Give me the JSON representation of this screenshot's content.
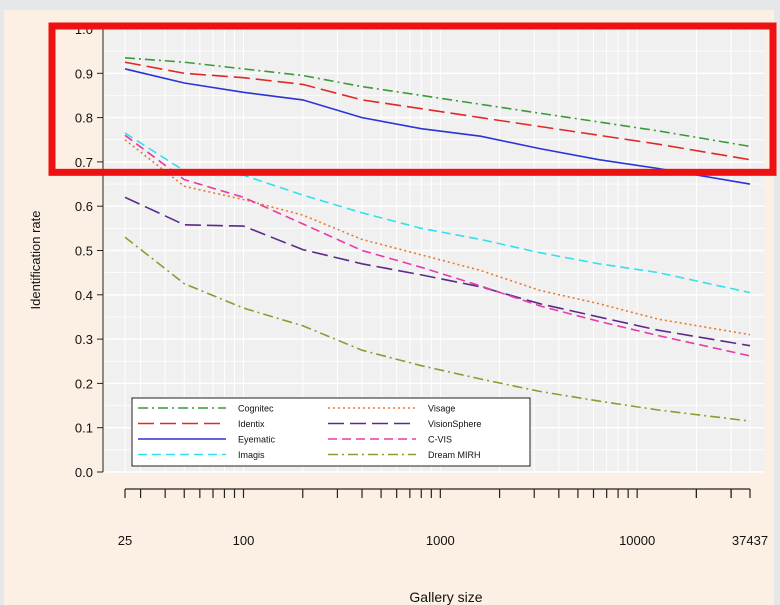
{
  "chart_data": {
    "type": "line",
    "xlabel": "Gallery size",
    "ylabel": "Identification rate",
    "xscale": "log",
    "xlim": [
      25,
      37437
    ],
    "ylim": [
      0,
      1
    ],
    "grid": true,
    "legend_position": "bottom-left",
    "x_tick_labels": [
      "25",
      "100",
      "1000",
      "10000",
      "37437"
    ],
    "y_tick_labels": [
      "0.0",
      "0.1",
      "0.2",
      "0.3",
      "0.4",
      "0.5",
      "0.6",
      "0.7",
      "0.8",
      "0.9",
      "1.0"
    ],
    "series": [
      {
        "name": "Cognitec",
        "color": "#3a9a3a",
        "dash": "dashdot",
        "x": [
          25,
          50,
          100,
          200,
          400,
          800,
          1600,
          3200,
          6400,
          12800,
          37437
        ],
        "y": [
          0.935,
          0.925,
          0.91,
          0.895,
          0.87,
          0.85,
          0.83,
          0.81,
          0.79,
          0.77,
          0.735
        ]
      },
      {
        "name": "Identix",
        "color": "#e02828",
        "dash": "longdash",
        "x": [
          25,
          50,
          100,
          200,
          400,
          800,
          1600,
          3200,
          6400,
          12800,
          37437
        ],
        "y": [
          0.925,
          0.9,
          0.89,
          0.875,
          0.84,
          0.82,
          0.8,
          0.78,
          0.76,
          0.74,
          0.705
        ]
      },
      {
        "name": "Eyematic",
        "color": "#2a34d8",
        "dash": "solid",
        "x": [
          25,
          50,
          100,
          200,
          400,
          800,
          1600,
          3200,
          6400,
          12800,
          37437
        ],
        "y": [
          0.91,
          0.878,
          0.857,
          0.84,
          0.8,
          0.775,
          0.758,
          0.73,
          0.705,
          0.685,
          0.65
        ]
      },
      {
        "name": "Imagis",
        "color": "#33e0ec",
        "dash": "dashed",
        "x": [
          25,
          50,
          100,
          200,
          400,
          800,
          1600,
          3200,
          6400,
          12800,
          37437
        ],
        "y": [
          0.765,
          0.68,
          0.67,
          0.625,
          0.585,
          0.55,
          0.525,
          0.495,
          0.47,
          0.45,
          0.405
        ]
      },
      {
        "name": "Visage",
        "color": "#e8782a",
        "dash": "dotted",
        "x": [
          25,
          50,
          100,
          200,
          400,
          800,
          1600,
          3200,
          6400,
          12800,
          37437
        ],
        "y": [
          0.75,
          0.645,
          0.615,
          0.58,
          0.525,
          0.49,
          0.455,
          0.41,
          0.38,
          0.345,
          0.31
        ]
      },
      {
        "name": "VisionSphere",
        "color": "#5a2a8a",
        "dash": "longdash",
        "x": [
          25,
          50,
          100,
          200,
          400,
          800,
          1600,
          3200,
          6400,
          12800,
          37437
        ],
        "y": [
          0.62,
          0.558,
          0.555,
          0.502,
          0.47,
          0.445,
          0.418,
          0.38,
          0.35,
          0.32,
          0.285
        ]
      },
      {
        "name": "C-VIS",
        "color": "#e83aa8",
        "dash": "dashed",
        "x": [
          25,
          50,
          100,
          200,
          400,
          800,
          1600,
          3200,
          6400,
          12800,
          37437
        ],
        "y": [
          0.76,
          0.66,
          0.62,
          0.56,
          0.5,
          0.462,
          0.42,
          0.375,
          0.34,
          0.308,
          0.262
        ]
      },
      {
        "name": "Dream MIRH",
        "color": "#8f9a32",
        "dash": "dashdot",
        "x": [
          25,
          50,
          100,
          200,
          400,
          800,
          1600,
          3200,
          6400,
          12800,
          37437
        ],
        "y": [
          0.53,
          0.425,
          0.37,
          0.33,
          0.275,
          0.24,
          0.21,
          0.182,
          0.16,
          0.14,
          0.115
        ]
      }
    ],
    "highlight": {
      "color": "#ee1111",
      "y_range": [
        0.69,
        1.0
      ],
      "label": ""
    }
  }
}
